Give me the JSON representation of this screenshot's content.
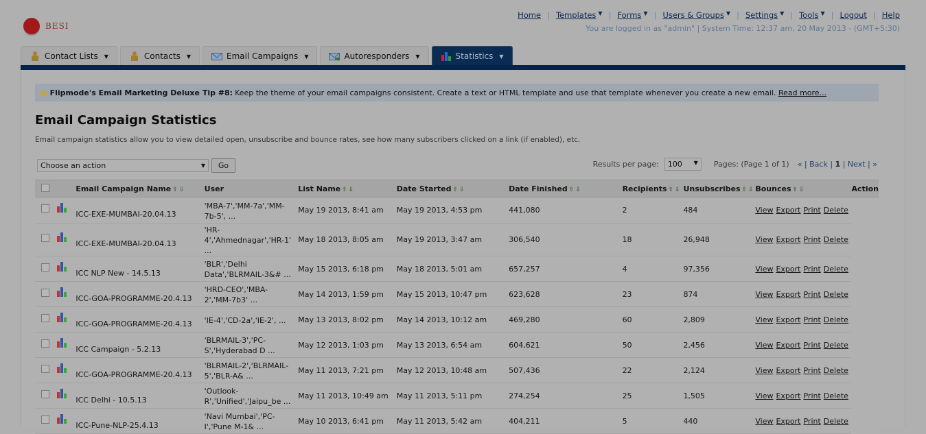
{
  "brand": {
    "name": "BESI"
  },
  "topnav": {
    "items": [
      {
        "label": "Home",
        "dropdown": false
      },
      {
        "label": "Templates",
        "dropdown": true
      },
      {
        "label": "Forms",
        "dropdown": true
      },
      {
        "label": "Users & Groups",
        "dropdown": true
      },
      {
        "label": "Settings",
        "dropdown": true
      },
      {
        "label": "Tools",
        "dropdown": true
      },
      {
        "label": "Logout",
        "dropdown": false
      },
      {
        "label": "Help",
        "dropdown": false
      }
    ],
    "status": "You are logged in as \"admin\" | System Time: 12:37 am, 20 May 2013 - (GMT+5:30)"
  },
  "tabs": [
    {
      "label": "Contact Lists",
      "icon": "contact-lists-icon"
    },
    {
      "label": "Contacts",
      "icon": "contacts-icon"
    },
    {
      "label": "Email Campaigns",
      "icon": "envelope-icon"
    },
    {
      "label": "Autoresponders",
      "icon": "autoresponder-icon"
    },
    {
      "label": "Statistics",
      "icon": "bar-chart-icon",
      "active": true
    }
  ],
  "tip": {
    "title": "Flipmode's Email Marketing Deluxe Tip #8:",
    "text": "Keep the theme of your email campaigns consistent. Create a text or HTML template and use that template whenever you create a new email.",
    "link": "Read more..."
  },
  "page": {
    "title": "Email Campaign Statistics",
    "description": "Email campaign statistics allow you to view detailed open, unsubscribe and bounce rates, see how many subscribers clicked on a link (if enabled), etc."
  },
  "toolbar": {
    "action_value": "Choose an action",
    "go_label": "Go",
    "results_label": "Results per page:",
    "results_value": "100",
    "pages_label": "Pages: (Page 1 of 1)",
    "first": "«",
    "back": "Back",
    "current": "1",
    "next": "Next",
    "last": "»"
  },
  "table": {
    "headers": [
      "Email Campaign Name",
      "User",
      "List Name",
      "Date Started",
      "Date Finished",
      "Recipients",
      "Unsubscribes",
      "Bounces",
      "Action"
    ],
    "row_links": [
      "View",
      "Export",
      "Print",
      "Delete"
    ],
    "rows": [
      [
        "ICC-EXE-MUMBAI-20.04.13",
        "'MBA-7','MM-7a','MM-7b-5', ...",
        "May 19 2013, 8:41 am",
        "May 19 2013, 4:53 pm",
        "441,080",
        "2",
        "484"
      ],
      [
        "ICC-EXE-MUMBAI-20.04.13",
        "'HR-4','Ahmednagar','HR-1' ...",
        "May 18 2013, 8:05 am",
        "May 19 2013, 3:47 am",
        "306,540",
        "18",
        "26,948"
      ],
      [
        "ICC NLP New - 14.5.13",
        "'BLR','Delhi Data','BLRMAIL-3&# ...",
        "May 15 2013, 6:18 pm",
        "May 18 2013, 5:01 am",
        "657,257",
        "4",
        "97,356"
      ],
      [
        "ICC-GOA-PROGRAMME-20.4.13",
        "'HRD-CEO','MBA-2','MM-7b3' ...",
        "May 14 2013, 1:59 pm",
        "May 15 2013, 10:47 pm",
        "623,628",
        "23",
        "874"
      ],
      [
        "ICC-GOA-PROGRAMME-20.4.13",
        "'IE-4','CD-2a','IE-2', ...",
        "May 13 2013, 8:02 pm",
        "May 14 2013, 10:12 am",
        "469,280",
        "60",
        "2,809"
      ],
      [
        "ICC Campaign - 5.2.13",
        "'BLRMAIL-3','PC-S','Hyderabad D ...",
        "May 12 2013, 1:03 pm",
        "May 13 2013, 6:54 am",
        "604,621",
        "50",
        "2,456"
      ],
      [
        "ICC-GOA-PROGRAMME-20.4.13",
        "'BLRMAIL-2','BLRMAIL-5','BLR-A& ...",
        "May 11 2013, 7:21 pm",
        "May 12 2013, 10:48 am",
        "507,436",
        "22",
        "2,124"
      ],
      [
        "ICC Delhi - 10.5.13",
        "'Outlook-R','Unified','Jaipu_be ...",
        "May 11 2013, 10:49 am",
        "May 11 2013, 5:11 pm",
        "274,254",
        "25",
        "1,505"
      ],
      [
        "ICC-Pune-NLP-25.4.13",
        "'Navi Mumbai','PC-I','Pune M-1& ...",
        "May 10 2013, 6:41 pm",
        "May 11 2013, 5:42 am",
        "404,211",
        "5",
        "440"
      ]
    ]
  },
  "colors": {
    "nav_bar": "#06244a",
    "active_tab": "#0b2c52",
    "link": "#0d2a55"
  }
}
